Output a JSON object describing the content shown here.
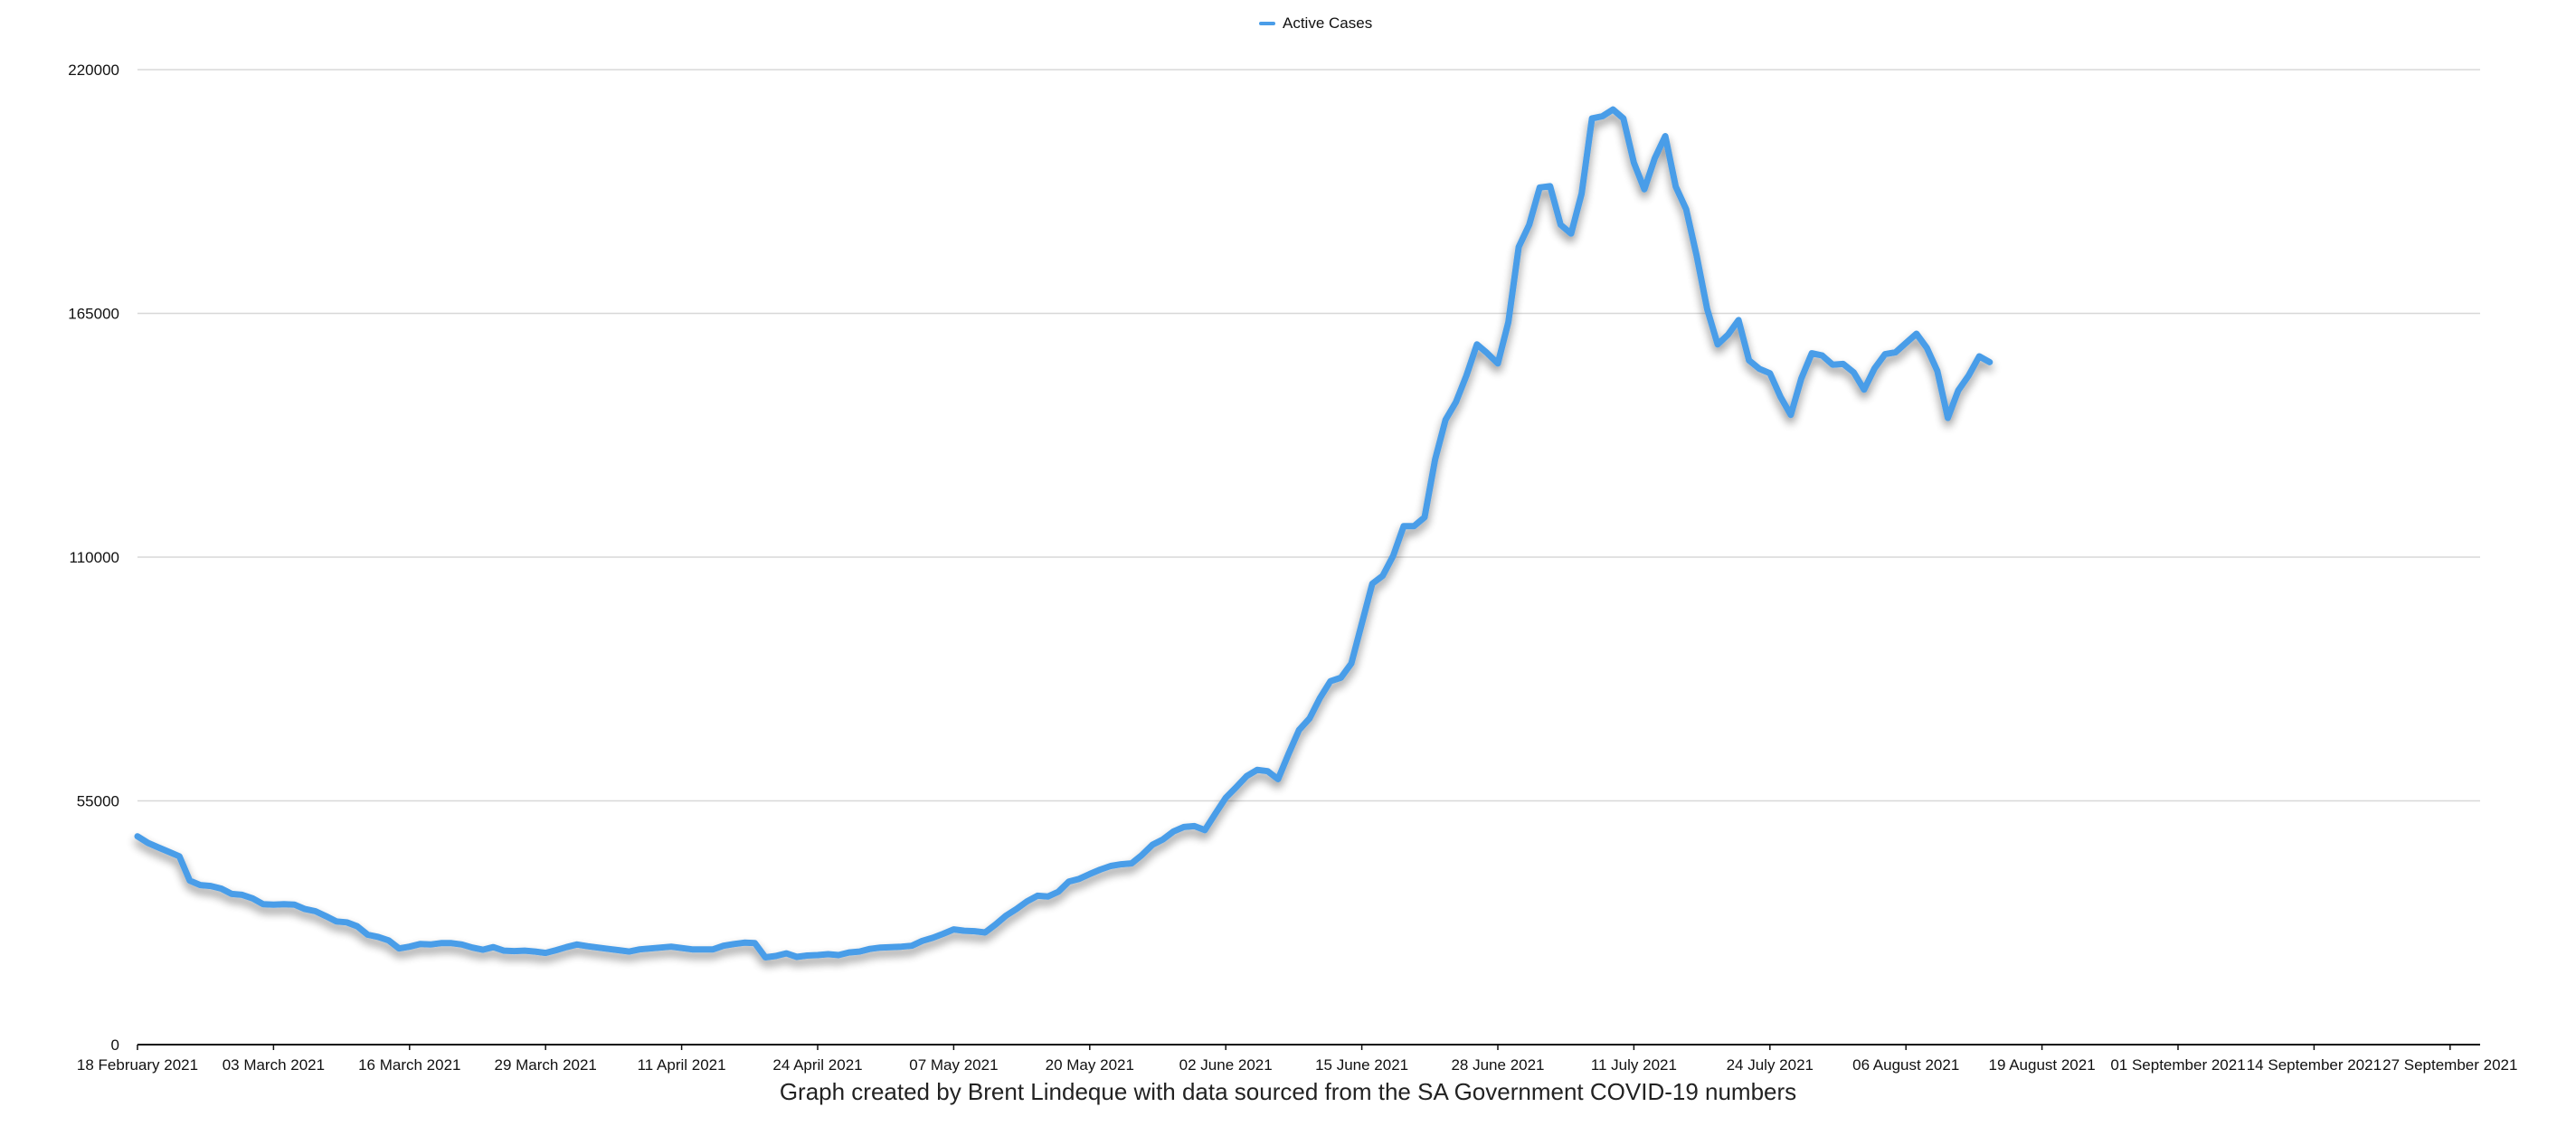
{
  "chart_data": {
    "type": "line",
    "title": "",
    "xlabel": "",
    "ylabel": "",
    "caption": "Graph created by Brent Lindeque with data sourced from the SA Government COVID-19 numbers",
    "legend_position": "top-center",
    "grid": true,
    "ylim": [
      0,
      220000
    ],
    "y_ticks": [
      "0",
      "55000",
      "110000",
      "165000",
      "220000"
    ],
    "x_range": [
      "2021-02-18",
      "2021-10-01"
    ],
    "x_ticks": [
      {
        "date": "2021-02-18",
        "label": "18 February 2021"
      },
      {
        "date": "2021-03-03",
        "label": "03 March 2021"
      },
      {
        "date": "2021-03-16",
        "label": "16 March 2021"
      },
      {
        "date": "2021-03-29",
        "label": "29 March 2021"
      },
      {
        "date": "2021-04-11",
        "label": "11 April 2021"
      },
      {
        "date": "2021-04-24",
        "label": "24 April 2021"
      },
      {
        "date": "2021-05-07",
        "label": "07 May 2021"
      },
      {
        "date": "2021-05-20",
        "label": "20 May 2021"
      },
      {
        "date": "2021-06-02",
        "label": "02 June 2021"
      },
      {
        "date": "2021-06-15",
        "label": "15 June 2021"
      },
      {
        "date": "2021-06-28",
        "label": "28 June 2021"
      },
      {
        "date": "2021-07-11",
        "label": "11 July 2021"
      },
      {
        "date": "2021-07-24",
        "label": "24 July 2021"
      },
      {
        "date": "2021-08-06",
        "label": "06 August 2021"
      },
      {
        "date": "2021-08-19",
        "label": "19 August 2021"
      },
      {
        "date": "2021-09-01",
        "label": "01 September 2021"
      },
      {
        "date": "2021-09-14",
        "label": "14 September 2021"
      },
      {
        "date": "2021-09-27",
        "label": "27 September 2021"
      }
    ],
    "series": [
      {
        "name": "Active Cases",
        "color": "#4a9de8",
        "points": [
          [
            "2021-02-18",
            47000
          ],
          [
            "2021-02-19",
            45500
          ],
          [
            "2021-02-20",
            44500
          ],
          [
            "2021-02-21",
            43500
          ],
          [
            "2021-02-22",
            42500
          ],
          [
            "2021-02-23",
            37000
          ],
          [
            "2021-02-24",
            36000
          ],
          [
            "2021-02-25",
            35800
          ],
          [
            "2021-02-26",
            35200
          ],
          [
            "2021-02-27",
            34000
          ],
          [
            "2021-02-28",
            33800
          ],
          [
            "2021-03-01",
            33000
          ],
          [
            "2021-03-02",
            31700
          ],
          [
            "2021-03-03",
            31600
          ],
          [
            "2021-03-04",
            31700
          ],
          [
            "2021-03-05",
            31600
          ],
          [
            "2021-03-06",
            30600
          ],
          [
            "2021-03-07",
            30100
          ],
          [
            "2021-03-08",
            29000
          ],
          [
            "2021-03-09",
            27800
          ],
          [
            "2021-03-10",
            27600
          ],
          [
            "2021-03-11",
            26700
          ],
          [
            "2021-03-12",
            24800
          ],
          [
            "2021-03-13",
            24300
          ],
          [
            "2021-03-14",
            23500
          ],
          [
            "2021-03-15",
            21700
          ],
          [
            "2021-03-16",
            22100
          ],
          [
            "2021-03-17",
            22700
          ],
          [
            "2021-03-18",
            22600
          ],
          [
            "2021-03-19",
            22900
          ],
          [
            "2021-03-20",
            22900
          ],
          [
            "2021-03-21",
            22600
          ],
          [
            "2021-03-22",
            21900
          ],
          [
            "2021-03-23",
            21400
          ],
          [
            "2021-03-24",
            22000
          ],
          [
            "2021-03-25",
            21200
          ],
          [
            "2021-03-26",
            21100
          ],
          [
            "2021-03-27",
            21200
          ],
          [
            "2021-03-28",
            21000
          ],
          [
            "2021-03-29",
            20700
          ],
          [
            "2021-03-30",
            21300
          ],
          [
            "2021-03-31",
            22000
          ],
          [
            "2021-04-01",
            22600
          ],
          [
            "2021-04-02",
            22200
          ],
          [
            "2021-04-03",
            21900
          ],
          [
            "2021-04-04",
            21600
          ],
          [
            "2021-04-05",
            21300
          ],
          [
            "2021-04-06",
            21000
          ],
          [
            "2021-04-07",
            21500
          ],
          [
            "2021-04-08",
            21700
          ],
          [
            "2021-04-09",
            21900
          ],
          [
            "2021-04-10",
            22100
          ],
          [
            "2021-04-11",
            21800
          ],
          [
            "2021-04-12",
            21500
          ],
          [
            "2021-04-13",
            21500
          ],
          [
            "2021-04-14",
            21500
          ],
          [
            "2021-04-15",
            22300
          ],
          [
            "2021-04-16",
            22700
          ],
          [
            "2021-04-17",
            23000
          ],
          [
            "2021-04-18",
            22900
          ],
          [
            "2021-04-19",
            19700
          ],
          [
            "2021-04-20",
            20000
          ],
          [
            "2021-04-21",
            20600
          ],
          [
            "2021-04-22",
            19800
          ],
          [
            "2021-04-23",
            20100
          ],
          [
            "2021-04-24",
            20200
          ],
          [
            "2021-04-25",
            20400
          ],
          [
            "2021-04-26",
            20200
          ],
          [
            "2021-04-27",
            20800
          ],
          [
            "2021-04-28",
            21000
          ],
          [
            "2021-04-29",
            21600
          ],
          [
            "2021-04-30",
            21900
          ],
          [
            "2021-05-01",
            22000
          ],
          [
            "2021-05-02",
            22100
          ],
          [
            "2021-05-03",
            22300
          ],
          [
            "2021-05-04",
            23400
          ],
          [
            "2021-05-05",
            24100
          ],
          [
            "2021-05-06",
            25000
          ],
          [
            "2021-05-07",
            26000
          ],
          [
            "2021-05-08",
            25700
          ],
          [
            "2021-05-09",
            25600
          ],
          [
            "2021-05-10",
            25300
          ],
          [
            "2021-05-11",
            27100
          ],
          [
            "2021-05-12",
            29100
          ],
          [
            "2021-05-13",
            30600
          ],
          [
            "2021-05-14",
            32300
          ],
          [
            "2021-05-15",
            33600
          ],
          [
            "2021-05-16",
            33400
          ],
          [
            "2021-05-17",
            34500
          ],
          [
            "2021-05-18",
            36800
          ],
          [
            "2021-05-19",
            37400
          ],
          [
            "2021-05-20",
            38500
          ],
          [
            "2021-05-21",
            39500
          ],
          [
            "2021-05-22",
            40300
          ],
          [
            "2021-05-23",
            40700
          ],
          [
            "2021-05-24",
            40900
          ],
          [
            "2021-05-25",
            42800
          ],
          [
            "2021-05-26",
            45100
          ],
          [
            "2021-05-27",
            46300
          ],
          [
            "2021-05-28",
            48100
          ],
          [
            "2021-05-29",
            49100
          ],
          [
            "2021-05-30",
            49300
          ],
          [
            "2021-05-31",
            48400
          ],
          [
            "2021-06-01",
            52100
          ],
          [
            "2021-06-02",
            55700
          ],
          [
            "2021-06-03",
            58100
          ],
          [
            "2021-06-04",
            60600
          ],
          [
            "2021-06-05",
            62000
          ],
          [
            "2021-06-06",
            61700
          ],
          [
            "2021-06-07",
            59900
          ],
          [
            "2021-06-08",
            65600
          ],
          [
            "2021-06-09",
            71000
          ],
          [
            "2021-06-10",
            73600
          ],
          [
            "2021-06-11",
            78200
          ],
          [
            "2021-06-12",
            82000
          ],
          [
            "2021-06-13",
            82800
          ],
          [
            "2021-06-14",
            86000
          ],
          [
            "2021-06-15",
            95000
          ],
          [
            "2021-06-16",
            104000
          ],
          [
            "2021-06-17",
            105800
          ],
          [
            "2021-06-18",
            110300
          ],
          [
            "2021-06-19",
            117000
          ],
          [
            "2021-06-20",
            117000
          ],
          [
            "2021-06-21",
            119000
          ],
          [
            "2021-06-22",
            132000
          ],
          [
            "2021-06-23",
            141000
          ],
          [
            "2021-06-24",
            145000
          ],
          [
            "2021-06-25",
            151000
          ],
          [
            "2021-06-26",
            158000
          ],
          [
            "2021-06-27",
            156000
          ],
          [
            "2021-06-28",
            153700
          ],
          [
            "2021-06-29",
            163000
          ],
          [
            "2021-06-30",
            180000
          ],
          [
            "2021-07-01",
            185000
          ],
          [
            "2021-07-02",
            193400
          ],
          [
            "2021-07-03",
            193700
          ],
          [
            "2021-07-04",
            185000
          ],
          [
            "2021-07-05",
            183000
          ],
          [
            "2021-07-06",
            192000
          ],
          [
            "2021-07-07",
            209000
          ],
          [
            "2021-07-08",
            209500
          ],
          [
            "2021-07-09",
            211000
          ],
          [
            "2021-07-10",
            209000
          ],
          [
            "2021-07-11",
            199000
          ],
          [
            "2021-07-12",
            193000
          ],
          [
            "2021-07-13",
            200000
          ],
          [
            "2021-07-14",
            205000
          ],
          [
            "2021-07-15",
            193600
          ],
          [
            "2021-07-16",
            188500
          ],
          [
            "2021-07-17",
            178000
          ],
          [
            "2021-07-18",
            166000
          ],
          [
            "2021-07-19",
            158000
          ],
          [
            "2021-07-20",
            160200
          ],
          [
            "2021-07-21",
            163500
          ],
          [
            "2021-07-22",
            154400
          ],
          [
            "2021-07-23",
            152500
          ],
          [
            "2021-07-24",
            151500
          ],
          [
            "2021-07-25",
            146200
          ],
          [
            "2021-07-26",
            142100
          ],
          [
            "2021-07-27",
            150300
          ],
          [
            "2021-07-28",
            156000
          ],
          [
            "2021-07-29",
            155500
          ],
          [
            "2021-07-30",
            153400
          ],
          [
            "2021-07-31",
            153600
          ],
          [
            "2021-08-01",
            151700
          ],
          [
            "2021-08-02",
            147800
          ],
          [
            "2021-08-03",
            152600
          ],
          [
            "2021-08-04",
            155800
          ],
          [
            "2021-08-05",
            156200
          ],
          [
            "2021-08-06",
            158300
          ],
          [
            "2021-08-07",
            160400
          ],
          [
            "2021-08-08",
            157200
          ],
          [
            "2021-08-09",
            152000
          ],
          [
            "2021-08-10",
            141400
          ],
          [
            "2021-08-11",
            147600
          ],
          [
            "2021-08-12",
            151000
          ],
          [
            "2021-08-13",
            155300
          ],
          [
            "2021-08-14",
            154000
          ]
        ]
      }
    ]
  }
}
